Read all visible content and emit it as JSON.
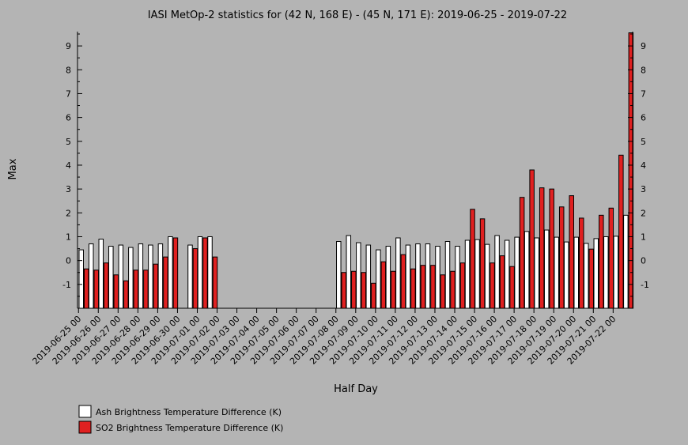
{
  "chart_data": {
    "type": "bar",
    "title": "IASI MetOp-2 statistics for (42 N, 168 E) - (45 N, 171 E): 2019-06-25 - 2019-07-22",
    "xlabel": "Half Day",
    "ylabel": "Max",
    "ylim": [
      -2,
      9.6
    ],
    "yticks": [
      -1,
      0,
      1,
      2,
      3,
      4,
      5,
      6,
      7,
      8,
      9
    ],
    "grid": false,
    "legend_position": "bottom-left",
    "date_labels": [
      "2019-06-25 00",
      "2019-06-26 00",
      "2019-06-27 00",
      "2019-06-28 00",
      "2019-06-29 00",
      "2019-06-30 00",
      "2019-07-01 00",
      "2019-07-02 00",
      "2019-07-03 00",
      "2019-07-04 00",
      "2019-07-05 00",
      "2019-07-06 00",
      "2019-07-07 00",
      "2019-07-08 00",
      "2019-07-09 00",
      "2019-07-10 00",
      "2019-07-11 00",
      "2019-07-12 00",
      "2019-07-13 00",
      "2019-07-14 00",
      "2019-07-15 00",
      "2019-07-16 00",
      "2019-07-17 00",
      "2019-07-18 00",
      "2019-07-19 00",
      "2019-07-20 00",
      "2019-07-21 00",
      "2019-07-22 00"
    ],
    "series": [
      {
        "name": "Ash Brightness Temperature Difference (K)",
        "color": "#ffffff",
        "values": [
          0.45,
          0.7,
          0.9,
          0.6,
          0.65,
          0.55,
          0.7,
          0.65,
          0.7,
          1.0,
          null,
          0.65,
          1.0,
          1.0,
          null,
          null,
          null,
          null,
          null,
          null,
          null,
          null,
          null,
          null,
          null,
          null,
          0.8,
          1.05,
          0.75,
          0.65,
          0.45,
          0.6,
          0.95,
          0.65,
          0.7,
          0.7,
          0.6,
          0.8,
          0.6,
          0.85,
          0.88,
          0.68,
          1.05,
          0.85,
          0.98,
          1.22,
          0.95,
          1.28,
          0.98,
          0.78,
          0.98,
          0.72,
          0.92,
          1.0,
          1.02,
          1.9
        ]
      },
      {
        "name": "SO2 Brightness Temperature Difference (K)",
        "color": "#e02020",
        "values": [
          -0.35,
          -0.4,
          -0.1,
          -0.6,
          -0.85,
          -0.4,
          -0.4,
          -0.15,
          0.15,
          0.95,
          null,
          0.5,
          0.95,
          0.15,
          null,
          null,
          null,
          null,
          null,
          null,
          null,
          null,
          null,
          null,
          null,
          null,
          -0.5,
          -0.45,
          -0.5,
          -0.95,
          -0.05,
          -0.45,
          0.25,
          -0.35,
          -0.2,
          -0.2,
          -0.6,
          -0.45,
          -0.1,
          2.15,
          1.75,
          -0.1,
          0.2,
          -0.25,
          2.65,
          3.8,
          3.05,
          3.0,
          2.25,
          2.72,
          1.78,
          0.48,
          1.9,
          2.2,
          4.42,
          9.55
        ]
      }
    ]
  }
}
